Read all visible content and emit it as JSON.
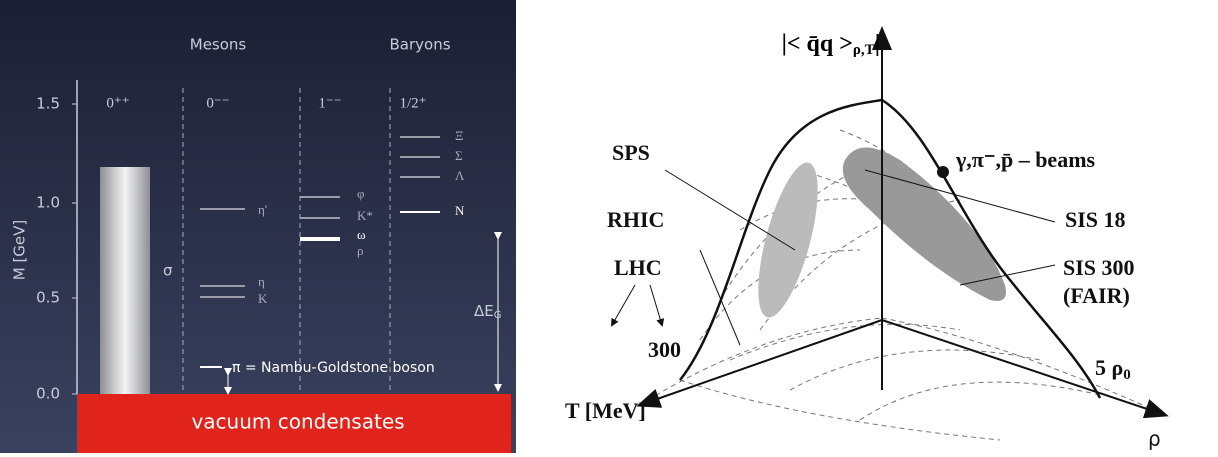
{
  "left": {
    "columns": [
      "Mesons",
      "Baryons"
    ],
    "y_axis_label": "M [GeV]",
    "yticks": [
      "0.0",
      "0.5",
      "1.0",
      "1.5"
    ],
    "groups": [
      "0⁺⁺",
      "0⁻⁻",
      "1⁻⁻",
      "1/2⁺"
    ],
    "sigma": "σ",
    "levels": [
      "η'",
      "η",
      "K",
      "φ",
      "K*",
      "ω",
      "ρ",
      "Ξ",
      "Σ",
      "Λ",
      "N"
    ],
    "pion": "π = Nambu-Goldstone boson",
    "gap_label": "ΔE",
    "gap_sub": "G",
    "vacuum": "vacuum condensates"
  },
  "right": {
    "title_main": "< q̄q >",
    "title_sub": "ρ,T",
    "labels": [
      "SPS",
      "RHIC",
      "LHC",
      "SIS 18",
      "SIS 300",
      "(FAIR)",
      "γ,π⁻,p̄ – beams",
      "300"
    ],
    "rho_label": "5 ρ",
    "rho_sub": "0",
    "t_axis": "T [MeV]",
    "rho_axis": "ρ"
  }
}
